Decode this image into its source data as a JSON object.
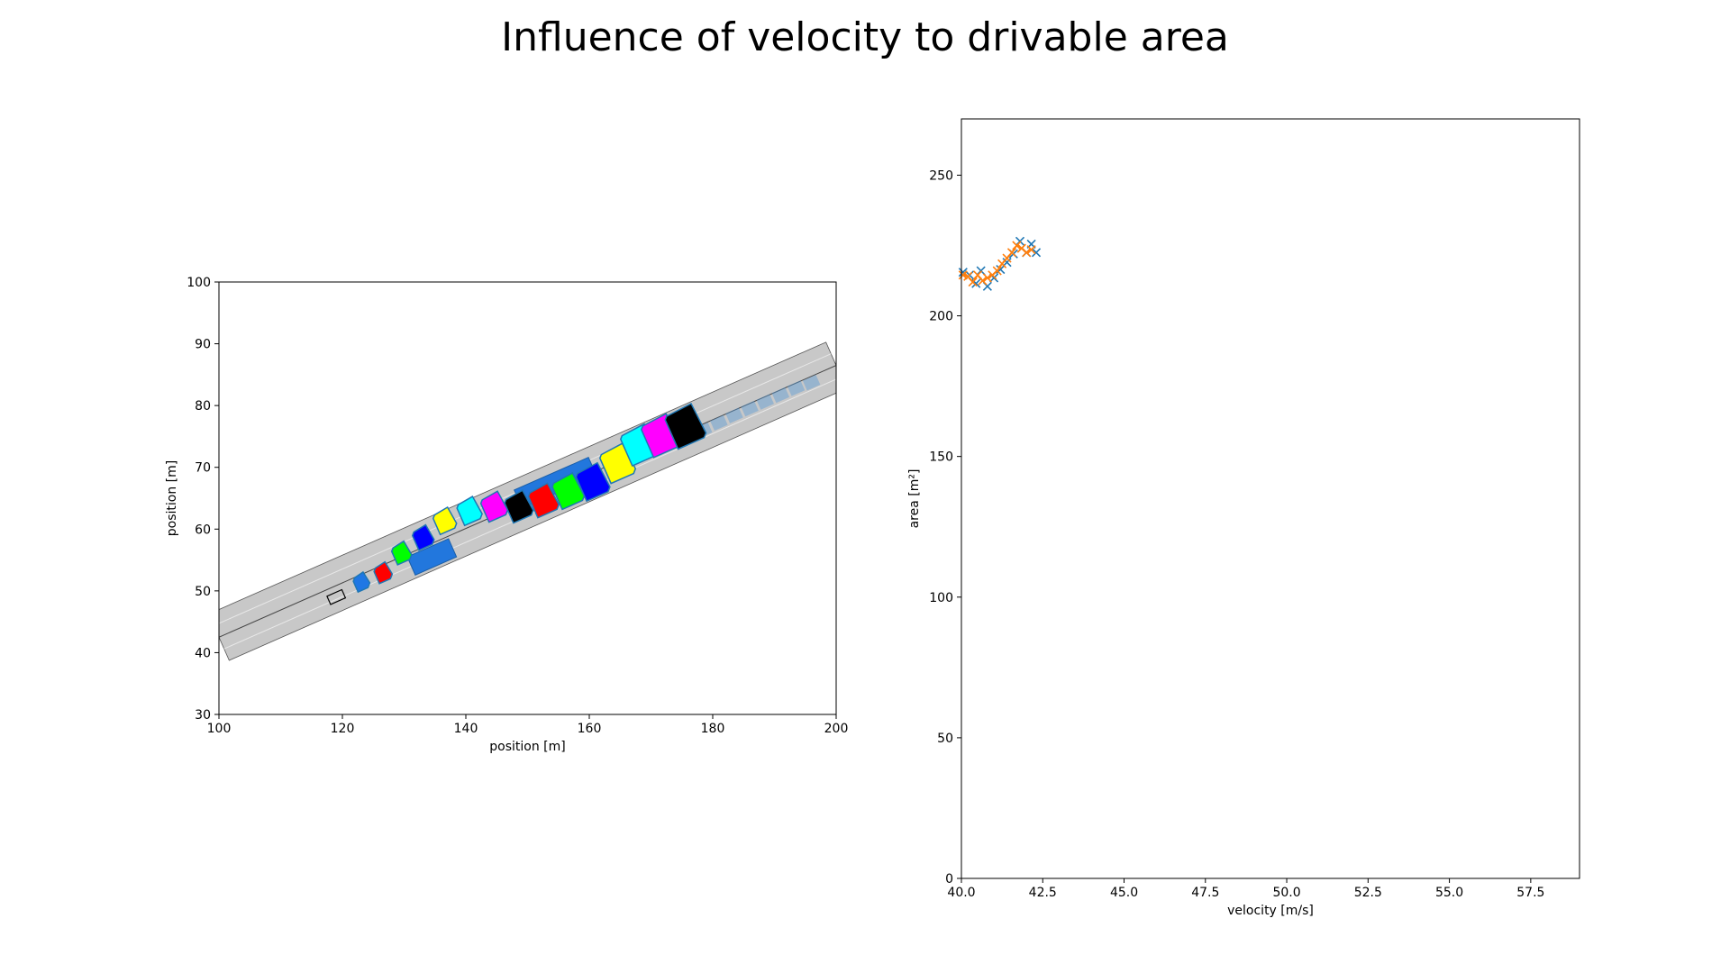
{
  "figure": {
    "title": "Influence of velocity to drivable area"
  },
  "chart_data": [
    {
      "type": "scatter",
      "name": "drivable-area-map",
      "title": "",
      "xlabel": "position [m]",
      "ylabel": "position [m]",
      "xlim": [
        100,
        200
      ],
      "ylim": [
        30,
        100
      ],
      "xticks": [
        "100",
        "120",
        "140",
        "160",
        "180",
        "200"
      ],
      "yticks": [
        "30",
        "40",
        "50",
        "60",
        "70",
        "80",
        "90",
        "100"
      ],
      "road": {
        "start": [
          100,
          42.5
        ],
        "end": [
          200,
          86.5
        ],
        "half_width_m": 4.1,
        "color": "#c8c8c8"
      },
      "ego_vehicle": {
        "x": 119,
        "y": 49,
        "color": "#000000"
      },
      "drivable_sets": [
        {
          "x": 123,
          "y": 51.3,
          "color": "#1f77e4"
        },
        {
          "x": 126.5,
          "y": 52.8,
          "color": "#ff0000"
        },
        {
          "x": 129.5,
          "y": 56.0,
          "color": "#00ff00"
        },
        {
          "x": 133,
          "y": 58.5,
          "color": "#0000ff"
        },
        {
          "x": 136.5,
          "y": 61.2,
          "color": "#ffff00"
        },
        {
          "x": 140.5,
          "y": 62.8,
          "color": "#00ffff"
        },
        {
          "x": 144.5,
          "y": 63.5,
          "color": "#ff00ff"
        },
        {
          "x": 148.5,
          "y": 63.5,
          "color": "#000000"
        },
        {
          "x": 152.5,
          "y": 64.5,
          "color": "#ff0000"
        },
        {
          "x": 156.5,
          "y": 66.0,
          "color": "#00ff00"
        },
        {
          "x": 160.5,
          "y": 67.5,
          "color": "#0000ff"
        },
        {
          "x": 164.5,
          "y": 70.5,
          "color": "#ffff00"
        },
        {
          "x": 168,
          "y": 73.5,
          "color": "#00ffff"
        },
        {
          "x": 171.5,
          "y": 75.0,
          "color": "#ff00ff"
        },
        {
          "x": 175.5,
          "y": 76.5,
          "color": "#000000"
        }
      ],
      "obstacles": [
        {
          "x": 134.5,
          "y": 55.5,
          "color": "#2277dd"
        },
        {
          "x": 154.5,
          "y": 67.5,
          "color": "#2277dd"
        }
      ],
      "predicted_path": [
        {
          "x": 176,
          "y": 75.0
        },
        {
          "x": 178.5,
          "y": 76.0
        },
        {
          "x": 181,
          "y": 77.2
        },
        {
          "x": 183.5,
          "y": 78.4
        },
        {
          "x": 186,
          "y": 79.5
        },
        {
          "x": 188.5,
          "y": 80.6
        },
        {
          "x": 191,
          "y": 81.7
        },
        {
          "x": 193.5,
          "y": 82.8
        },
        {
          "x": 196,
          "y": 83.7
        }
      ]
    },
    {
      "type": "scatter",
      "name": "velocity-vs-area",
      "title": "",
      "xlabel": "velocity [m/s]",
      "ylabel": "area [m²]",
      "xlim": [
        40,
        59
      ],
      "ylim": [
        0,
        270
      ],
      "xticks": [
        "40.0",
        "42.5",
        "45.0",
        "47.5",
        "50.0",
        "52.5",
        "55.0",
        "57.5"
      ],
      "yticks": [
        "0",
        "50",
        "100",
        "150",
        "200",
        "250"
      ],
      "series": [
        {
          "marker": "x",
          "color": "#1f77b4",
          "x": [
            40.05,
            40.25,
            40.45,
            40.6,
            40.8,
            41.0,
            41.2,
            41.4,
            41.6,
            41.8,
            42.0,
            42.15,
            42.3
          ],
          "y": [
            215.5,
            214.5,
            211.5,
            216.0,
            210.5,
            213.5,
            216.5,
            219.0,
            222.0,
            226.5,
            222.5,
            225.5,
            222.5
          ]
        },
        {
          "marker": "line-x",
          "color": "#ff7f0e",
          "x": [
            40.05,
            40.2,
            40.35,
            40.5,
            40.65,
            40.8,
            40.95,
            41.1,
            41.25,
            41.4,
            41.55,
            41.7,
            41.85,
            42.0,
            42.15
          ],
          "y": [
            214.5,
            214.0,
            212.0,
            214.5,
            212.5,
            213.5,
            214.5,
            216.0,
            218.5,
            220.5,
            222.5,
            225.0,
            224.0,
            222.5,
            223.5
          ]
        }
      ]
    }
  ]
}
